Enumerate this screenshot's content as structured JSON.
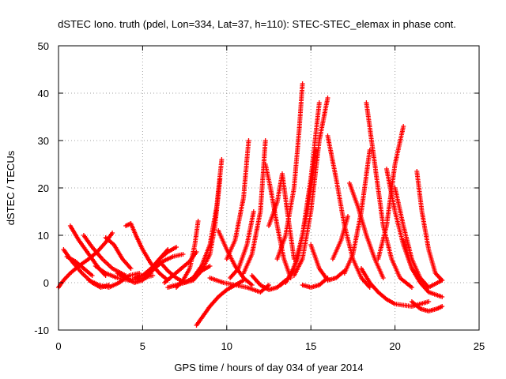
{
  "chart_data": {
    "type": "scatter",
    "title": "dSTEC Iono. truth (pdel, Lon=334, Lat=37, h=110): STEC-STEC_elemax in phase cont.",
    "xlabel": "GPS time / hours of day 034 of year 2014",
    "ylabel": "dSTEC  / TECUs",
    "xlim": [
      0,
      25
    ],
    "ylim": [
      -10,
      50
    ],
    "xticks": [
      0,
      5,
      10,
      15,
      20,
      25
    ],
    "yticks": [
      -10,
      0,
      10,
      20,
      30,
      40,
      50
    ],
    "grid": true,
    "marker": "plus",
    "color": "#ff0000",
    "series": [
      {
        "x": [
          0.0,
          0.3,
          0.7,
          1.2,
          1.8,
          2.3,
          2.8,
          3.2
        ],
        "y": [
          -1.0,
          0.5,
          2.0,
          3.5,
          5.0,
          6.5,
          8.5,
          10.5
        ]
      },
      {
        "x": [
          0.3,
          0.8,
          1.4,
          2.0,
          2.5,
          3.0
        ],
        "y": [
          7.0,
          4.5,
          2.0,
          0.0,
          -1.0,
          -0.5
        ]
      },
      {
        "x": [
          0.7,
          1.2,
          1.8,
          2.4,
          2.8
        ],
        "y": [
          12.0,
          9.0,
          6.0,
          3.0,
          1.5
        ]
      },
      {
        "x": [
          1.5,
          2.0,
          2.6,
          3.2,
          4.0
        ],
        "y": [
          10.0,
          7.5,
          5.0,
          3.0,
          1.5
        ]
      },
      {
        "x": [
          0.5,
          1.0,
          1.5,
          2.0
        ],
        "y": [
          5.5,
          4.5,
          3.0,
          1.5
        ]
      },
      {
        "x": [
          1.8,
          2.4,
          3.0,
          3.6,
          4.2,
          4.8
        ],
        "y": [
          0.5,
          -0.5,
          -1.0,
          0.0,
          1.5,
          2.0
        ]
      },
      {
        "x": [
          2.2,
          2.8,
          3.5,
          4.2,
          5.0,
          5.6
        ],
        "y": [
          3.5,
          2.0,
          1.0,
          0.5,
          1.0,
          1.5
        ]
      },
      {
        "x": [
          2.8,
          3.3,
          3.8,
          4.3
        ],
        "y": [
          9.5,
          8.0,
          5.0,
          3.0
        ]
      },
      {
        "x": [
          4.0,
          4.3,
          4.6,
          5.0,
          5.5,
          6.0,
          6.5
        ],
        "y": [
          12.0,
          12.5,
          10.0,
          7.0,
          4.0,
          2.0,
          0.5
        ]
      },
      {
        "x": [
          3.5,
          4.0,
          4.5,
          5.0,
          5.5,
          6.0,
          6.5
        ],
        "y": [
          2.0,
          1.0,
          0.0,
          0.5,
          2.5,
          5.0,
          7.0
        ]
      },
      {
        "x": [
          4.5,
          5.0,
          5.5,
          6.0,
          6.5,
          7.0
        ],
        "y": [
          1.0,
          1.5,
          3.0,
          5.0,
          6.5,
          7.5
        ]
      },
      {
        "x": [
          5.2,
          5.7,
          6.2,
          6.8,
          7.4
        ],
        "y": [
          1.0,
          3.0,
          4.5,
          5.5,
          6.0
        ]
      },
      {
        "x": [
          6.0,
          6.5,
          7.0,
          7.5,
          8.0,
          8.3
        ],
        "y": [
          4.5,
          2.5,
          1.0,
          0.0,
          0.5,
          2.0
        ]
      },
      {
        "x": [
          6.3,
          6.8,
          7.3,
          7.8,
          8.2
        ],
        "y": [
          0.0,
          1.5,
          3.0,
          4.5,
          6.5
        ]
      },
      {
        "x": [
          6.5,
          7.0,
          7.5,
          8.0,
          8.5,
          9.0
        ],
        "y": [
          -1.0,
          -0.5,
          0.0,
          1.0,
          2.5,
          3.5
        ]
      },
      {
        "x": [
          7.0,
          7.4,
          7.8,
          8.1,
          8.3
        ],
        "y": [
          -1.0,
          0.5,
          3.0,
          8.0,
          13.0
        ]
      },
      {
        "x": [
          7.5,
          8.0,
          8.5,
          9.0,
          9.4,
          9.7
        ],
        "y": [
          0.0,
          1.0,
          3.5,
          8.0,
          16.0,
          26.0
        ]
      },
      {
        "x": [
          8.0,
          8.5,
          9.0,
          9.3,
          9.6
        ],
        "y": [
          0.5,
          2.5,
          6.0,
          12.0,
          22.0
        ]
      },
      {
        "x": [
          8.2,
          8.6,
          9.0,
          9.5,
          10.0,
          10.5,
          11.0
        ],
        "y": [
          -9.0,
          -7.0,
          -5.0,
          -3.0,
          -1.5,
          -0.5,
          0.5
        ]
      },
      {
        "x": [
          9.5,
          10.0,
          10.5,
          11.0,
          11.5
        ],
        "y": [
          11.0,
          7.0,
          3.5,
          1.0,
          -0.5
        ]
      },
      {
        "x": [
          9.0,
          9.8,
          10.5,
          11.2,
          12.0,
          12.5
        ],
        "y": [
          1.0,
          0.0,
          -0.5,
          -1.0,
          -2.0,
          -0.5
        ]
      },
      {
        "x": [
          10.0,
          10.5,
          11.0,
          11.3
        ],
        "y": [
          5.0,
          9.0,
          18.0,
          30.0
        ]
      },
      {
        "x": [
          10.2,
          10.7,
          11.2,
          11.6
        ],
        "y": [
          1.0,
          3.0,
          8.0,
          15.0
        ]
      },
      {
        "x": [
          11.0,
          11.5,
          12.0,
          12.3
        ],
        "y": [
          2.0,
          6.0,
          15.0,
          30.0
        ]
      },
      {
        "x": [
          11.5,
          12.0,
          12.5,
          13.0,
          13.5
        ],
        "y": [
          1.5,
          -0.5,
          -1.5,
          -1.0,
          0.5
        ]
      },
      {
        "x": [
          12.3,
          12.6,
          13.0,
          13.4,
          13.8
        ],
        "y": [
          25.0,
          20.0,
          12.0,
          5.0,
          1.0
        ]
      },
      {
        "x": [
          12.5,
          13.0,
          13.3,
          13.6,
          14.0
        ],
        "y": [
          12.0,
          17.0,
          23.0,
          15.0,
          5.0
        ]
      },
      {
        "x": [
          13.0,
          13.5,
          14.0,
          14.3,
          14.5
        ],
        "y": [
          5.0,
          10.0,
          20.0,
          32.0,
          42.0
        ]
      },
      {
        "x": [
          13.2,
          13.7,
          14.2,
          14.8,
          15.3
        ],
        "y": [
          -0.5,
          1.0,
          5.0,
          15.0,
          28.0
        ]
      },
      {
        "x": [
          13.5,
          14.0,
          14.5,
          15.0,
          15.5
        ],
        "y": [
          0.0,
          3.0,
          10.0,
          22.0,
          38.0
        ]
      },
      {
        "x": [
          14.0,
          14.5,
          15.0,
          15.5,
          16.0
        ],
        "y": [
          1.5,
          5.0,
          15.0,
          30.0,
          39.0
        ]
      },
      {
        "x": [
          14.5,
          15.0,
          15.5,
          16.0
        ],
        "y": [
          -0.5,
          -1.0,
          -0.5,
          1.0
        ]
      },
      {
        "x": [
          15.0,
          15.5,
          16.0,
          16.5,
          17.0
        ],
        "y": [
          8.0,
          3.0,
          0.5,
          1.0,
          2.5
        ]
      },
      {
        "x": [
          16.0,
          16.5,
          17.0,
          17.5,
          18.0,
          18.5
        ],
        "y": [
          31.0,
          22.0,
          12.0,
          5.0,
          1.0,
          -1.0
        ]
      },
      {
        "x": [
          16.3,
          16.8,
          17.2
        ],
        "y": [
          5.0,
          9.0,
          14.0
        ]
      },
      {
        "x": [
          17.0,
          17.5,
          18.0,
          18.5
        ],
        "y": [
          2.0,
          6.0,
          15.0,
          28.0
        ]
      },
      {
        "x": [
          17.3,
          17.8,
          18.3,
          18.8,
          19.3
        ],
        "y": [
          21.0,
          16.0,
          10.0,
          5.0,
          1.0
        ]
      },
      {
        "x": [
          18.3,
          18.8,
          19.3,
          19.8,
          20.3,
          21.0
        ],
        "y": [
          38.0,
          25.0,
          12.0,
          5.0,
          1.0,
          -1.0
        ]
      },
      {
        "x": [
          18.0,
          18.5,
          19.0,
          19.5,
          20.0,
          21.0,
          22.0
        ],
        "y": [
          3.0,
          0.0,
          -2.0,
          -3.5,
          -4.5,
          -5.0,
          -4.0
        ]
      },
      {
        "x": [
          19.0,
          19.5,
          20.0,
          20.5
        ],
        "y": [
          5.0,
          12.0,
          25.0,
          33.0
        ]
      },
      {
        "x": [
          19.5,
          20.0,
          20.5,
          21.0,
          21.5
        ],
        "y": [
          24.0,
          15.0,
          8.0,
          3.0,
          0.5
        ]
      },
      {
        "x": [
          20.0,
          20.5,
          21.0,
          21.5,
          22.0,
          22.8
        ],
        "y": [
          20.0,
          12.0,
          5.0,
          1.0,
          -1.0,
          0.5
        ]
      },
      {
        "x": [
          20.5,
          21.0,
          21.5,
          22.0,
          22.8
        ],
        "y": [
          9.0,
          3.0,
          0.0,
          -2.0,
          -3.0
        ]
      },
      {
        "x": [
          21.0,
          21.5,
          22.0,
          22.5,
          22.8
        ],
        "y": [
          -4.0,
          -5.5,
          -6.0,
          -5.5,
          -5.0
        ]
      },
      {
        "x": [
          21.3,
          21.6,
          22.0,
          22.4,
          22.8
        ],
        "y": [
          23.5,
          15.0,
          7.0,
          2.0,
          0.5
        ]
      }
    ]
  }
}
